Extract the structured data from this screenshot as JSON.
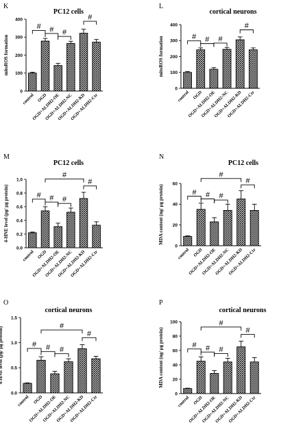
{
  "chart_data": [
    {
      "panel": "K",
      "type": "bar",
      "title": "PC12 cells",
      "ylabel": "mitoROS formation",
      "ylim": [
        0,
        400
      ],
      "yticks": [
        "0",
        "100",
        "200",
        "300",
        "400"
      ],
      "categories": [
        "control",
        "OGD",
        "OGD+ALDH2-OE",
        "OGD+ALDH2-NC",
        "OGD+ALDH2-KD",
        "OGD+ALDH2-Ctr"
      ],
      "values": [
        100,
        278,
        142,
        265,
        322,
        272
      ],
      "errors": [
        5,
        15,
        12,
        12,
        22,
        15
      ],
      "significance": [
        {
          "from": 0,
          "to": 1,
          "label": "#",
          "level": 1
        },
        {
          "from": 1,
          "to": 2,
          "label": "#",
          "level": 2
        },
        {
          "from": 2,
          "to": 3,
          "label": "#",
          "level": 2
        },
        {
          "from": 4,
          "to": 5,
          "label": "#",
          "level": 1
        }
      ]
    },
    {
      "panel": "L",
      "type": "bar",
      "title": "cortical neurons",
      "ylabel": "mitoROS formation",
      "ylim": [
        0,
        400
      ],
      "yticks": [
        "0",
        "100",
        "200",
        "300",
        "400"
      ],
      "categories": [
        "control",
        "OGD",
        "OGD+ALDH2-OE",
        "OGD+ALDH2-NC",
        "OGD+ALDH2-KD",
        "OGD+ALDH2-Ctr"
      ],
      "values": [
        100,
        242,
        120,
        245,
        305,
        242
      ],
      "errors": [
        5,
        12,
        10,
        12,
        18,
        12
      ],
      "significance": [
        {
          "from": 0,
          "to": 1,
          "label": "#",
          "level": 1
        },
        {
          "from": 1,
          "to": 2,
          "label": "#",
          "level": 2
        },
        {
          "from": 2,
          "to": 3,
          "label": "#",
          "level": 2
        },
        {
          "from": 4,
          "to": 5,
          "label": "#",
          "level": 1
        }
      ]
    },
    {
      "panel": "M",
      "type": "bar",
      "title": "PC12 cells",
      "ylabel": "4-HNE level (pg/ μg protein)",
      "ylim": [
        0,
        1.0
      ],
      "yticks": [
        "0.0",
        "0.2",
        "0.4",
        "0.6",
        "0.8",
        "1.0"
      ],
      "categories": [
        "control",
        "OGD",
        "OGD+ALDH2-OE",
        "OGD+ALDH2-NC",
        "OGD+ALDH2-KD",
        "OGD+ALDH2-Ctr"
      ],
      "values": [
        0.22,
        0.54,
        0.31,
        0.52,
        0.72,
        0.33
      ],
      "errors": [
        0.01,
        0.06,
        0.05,
        0.06,
        0.09,
        0.05
      ],
      "significance": [
        {
          "from": 0,
          "to": 1,
          "label": "#",
          "level": 1
        },
        {
          "from": 1,
          "to": 2,
          "label": "#",
          "level": 2
        },
        {
          "from": 2,
          "to": 3,
          "label": "#",
          "level": 2
        },
        {
          "from": 1,
          "to": 4,
          "label": "#",
          "level": 4
        },
        {
          "from": 4,
          "to": 5,
          "label": "#",
          "level": 3
        }
      ]
    },
    {
      "panel": "N",
      "type": "bar",
      "title": "PC12 cells",
      "ylabel": "MDA content (ng/ μg protein)",
      "ylim": [
        0,
        60
      ],
      "yticks": [
        "0",
        "20",
        "40",
        "60"
      ],
      "categories": [
        "control",
        "OGD",
        "OGD+ALDH2-OE",
        "OGD+ALDH2-NC",
        "OGD+ALDH2-KD",
        "OGD+ALDH2-Ctr"
      ],
      "values": [
        9,
        35,
        23,
        34,
        45,
        34
      ],
      "errors": [
        0.5,
        6,
        4,
        6,
        8,
        6
      ],
      "significance": [
        {
          "from": 0,
          "to": 1,
          "label": "#",
          "level": 1
        },
        {
          "from": 1,
          "to": 2,
          "label": "#",
          "level": 2
        },
        {
          "from": 2,
          "to": 3,
          "label": "#",
          "level": 2
        },
        {
          "from": 1,
          "to": 4,
          "label": "#",
          "level": 4
        },
        {
          "from": 4,
          "to": 5,
          "label": "#",
          "level": 3
        }
      ]
    },
    {
      "panel": "O",
      "type": "bar",
      "title": "cortical neurons",
      "ylabel": "4-HNE level (pg/ μg protein)",
      "ylim": [
        0,
        1.5
      ],
      "yticks": [
        "0.0",
        "0.5",
        "1.0",
        "1.5"
      ],
      "categories": [
        "control",
        "OGD",
        "OGD+ALDH2-OE",
        "OGD+ALDH2-NC",
        "OGD+ALDH2-KD",
        "OGD+ALDH2-Ctr"
      ],
      "values": [
        0.19,
        0.65,
        0.38,
        0.62,
        0.88,
        0.68
      ],
      "errors": [
        0.01,
        0.07,
        0.05,
        0.06,
        0.08,
        0.05
      ],
      "significance": [
        {
          "from": 0,
          "to": 1,
          "label": "#",
          "level": 1
        },
        {
          "from": 1,
          "to": 2,
          "label": "#",
          "level": 2
        },
        {
          "from": 2,
          "to": 3,
          "label": "#",
          "level": 2
        },
        {
          "from": 1,
          "to": 4,
          "label": "#",
          "level": 4
        },
        {
          "from": 4,
          "to": 5,
          "label": "#",
          "level": 3
        }
      ]
    },
    {
      "panel": "P",
      "type": "bar",
      "title": "cortical neurons",
      "ylabel": "MDA content (ng/ μg protein)",
      "ylim": [
        0,
        100
      ],
      "yticks": [
        "0",
        "20",
        "40",
        "60",
        "80",
        "100"
      ],
      "categories": [
        "control",
        "OGD",
        "OGD+ALDH2-OE",
        "OGD+ALDH2-NC",
        "OGD+ALDH2-KD",
        "OGD+ALDH2-Ctr"
      ],
      "values": [
        7,
        45,
        28,
        44,
        65,
        44
      ],
      "errors": [
        0.5,
        6,
        4,
        5,
        8,
        6
      ],
      "significance": [
        {
          "from": 0,
          "to": 1,
          "label": "#",
          "level": 1
        },
        {
          "from": 1,
          "to": 2,
          "label": "#",
          "level": 2
        },
        {
          "from": 2,
          "to": 3,
          "label": "#",
          "level": 2
        },
        {
          "from": 1,
          "to": 4,
          "label": "#",
          "level": 4
        },
        {
          "from": 4,
          "to": 5,
          "label": "#",
          "level": 3
        }
      ]
    }
  ]
}
